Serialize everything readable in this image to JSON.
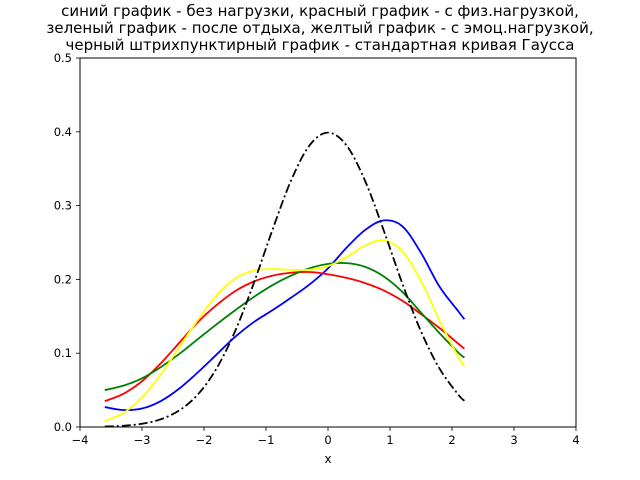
{
  "chart_data": {
    "type": "line",
    "title_lines": [
      "синий график - без нагрузки, красный график - с физ.нагрузкой,",
      "зеленый график - после отдыха, желтый график - с эмоц.нагрузкой,",
      "черный штрихпунктирный график - стандартная кривая Гаусса"
    ],
    "xlabel": "x",
    "ylabel": "",
    "xlim": [
      -4,
      4
    ],
    "ylim": [
      0,
      0.5
    ],
    "xticks": [
      "−4",
      "−3",
      "−2",
      "−1",
      "0",
      "1",
      "2",
      "3",
      "4"
    ],
    "yticks": [
      "0.0",
      "0.1",
      "0.2",
      "0.3",
      "0.4",
      "0.5"
    ],
    "grid": false,
    "series": [
      {
        "color": "#0000ff",
        "style": "solid",
        "x": [
          -3.6,
          -3.3,
          -3.0,
          -2.7,
          -2.4,
          -2.1,
          -1.8,
          -1.5,
          -1.2,
          -0.9,
          -0.6,
          -0.3,
          0.0,
          0.3,
          0.6,
          0.9,
          1.2,
          1.5,
          1.8,
          2.1,
          2.2
        ],
        "y": [
          0.027,
          0.023,
          0.025,
          0.035,
          0.052,
          0.074,
          0.098,
          0.122,
          0.142,
          0.158,
          0.175,
          0.193,
          0.215,
          0.243,
          0.267,
          0.28,
          0.272,
          0.236,
          0.19,
          0.157,
          0.146
        ]
      },
      {
        "color": "#ff0000",
        "style": "solid",
        "x": [
          -3.6,
          -3.3,
          -3.0,
          -2.7,
          -2.4,
          -2.1,
          -1.8,
          -1.5,
          -1.2,
          -0.9,
          -0.6,
          -0.3,
          0.0,
          0.3,
          0.6,
          0.9,
          1.2,
          1.5,
          1.8,
          2.1,
          2.2
        ],
        "y": [
          0.035,
          0.045,
          0.062,
          0.086,
          0.114,
          0.142,
          0.165,
          0.184,
          0.197,
          0.205,
          0.209,
          0.21,
          0.207,
          0.202,
          0.195,
          0.185,
          0.171,
          0.153,
          0.134,
          0.113,
          0.106
        ]
      },
      {
        "color": "#008000",
        "style": "solid",
        "x": [
          -3.6,
          -3.3,
          -3.0,
          -2.7,
          -2.4,
          -2.1,
          -1.8,
          -1.5,
          -1.2,
          -0.9,
          -0.6,
          -0.3,
          0.0,
          0.3,
          0.6,
          0.9,
          1.2,
          1.5,
          1.8,
          2.1,
          2.2
        ],
        "y": [
          0.05,
          0.056,
          0.066,
          0.081,
          0.099,
          0.119,
          0.139,
          0.158,
          0.176,
          0.192,
          0.205,
          0.215,
          0.221,
          0.222,
          0.217,
          0.204,
          0.183,
          0.155,
          0.127,
          0.101,
          0.094
        ]
      },
      {
        "color": "#ffff00",
        "style": "solid",
        "x": [
          -3.6,
          -3.3,
          -3.0,
          -2.7,
          -2.4,
          -2.1,
          -1.8,
          -1.5,
          -1.2,
          -0.9,
          -0.6,
          -0.3,
          0.0,
          0.3,
          0.6,
          0.9,
          1.2,
          1.5,
          1.8,
          2.1,
          2.2
        ],
        "y": [
          0.008,
          0.019,
          0.04,
          0.071,
          0.108,
          0.145,
          0.178,
          0.201,
          0.212,
          0.214,
          0.213,
          0.213,
          0.218,
          0.23,
          0.246,
          0.253,
          0.238,
          0.198,
          0.144,
          0.095,
          0.082
        ]
      },
      {
        "color": "#000000",
        "style": "dashdot",
        "x": [
          -3.6,
          -3.3,
          -3.0,
          -2.7,
          -2.4,
          -2.1,
          -1.8,
          -1.5,
          -1.2,
          -0.9,
          -0.6,
          -0.3,
          0.0,
          0.3,
          0.6,
          0.9,
          1.2,
          1.5,
          1.8,
          2.1,
          2.2
        ],
        "y": [
          0.0006,
          0.0017,
          0.0044,
          0.0104,
          0.0224,
          0.044,
          0.079,
          0.1295,
          0.1942,
          0.2661,
          0.3332,
          0.3814,
          0.3989,
          0.3814,
          0.3332,
          0.2661,
          0.1942,
          0.1295,
          0.079,
          0.044,
          0.0355
        ]
      }
    ]
  }
}
